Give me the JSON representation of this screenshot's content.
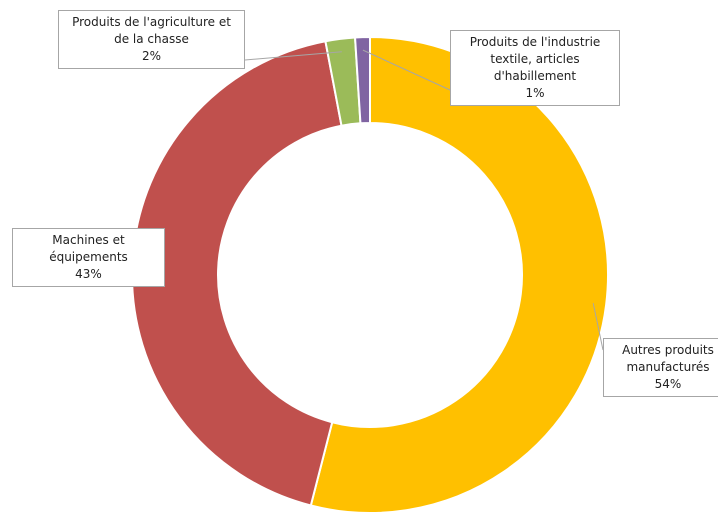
{
  "chart_data": {
    "type": "pie",
    "categories": [
      "Autres produits manufacturés",
      "Machines et équipements",
      "Produits de l'agriculture et de la chasse",
      "Produits de l'industrie textile, articles d'habillement"
    ],
    "values": [
      54,
      43,
      2,
      1
    ],
    "value_labels": [
      "54%",
      "43%",
      "2%",
      "1%"
    ],
    "colors": [
      "#ffc000",
      "#c0504d",
      "#9bbb59",
      "#8064a2"
    ],
    "donut": true
  }
}
